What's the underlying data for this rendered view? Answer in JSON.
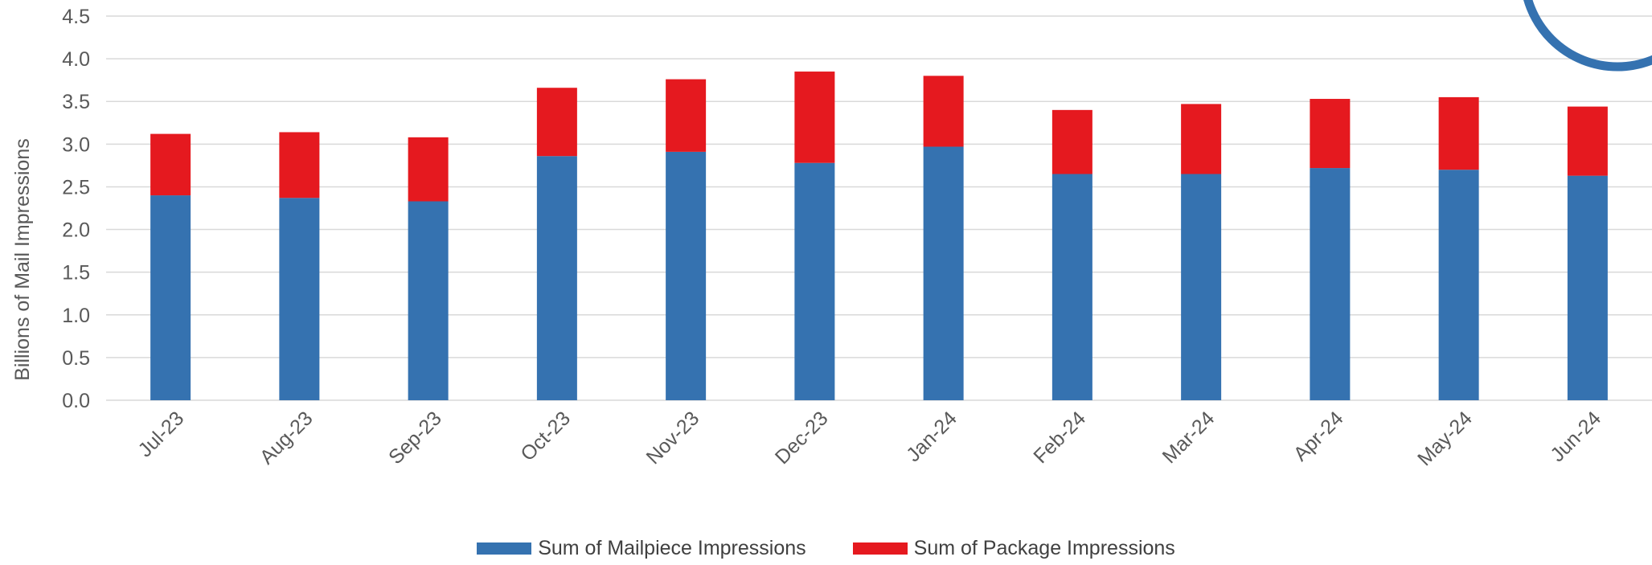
{
  "chart_data": {
    "type": "bar",
    "stacked": true,
    "categories": [
      "Jul-23",
      "Aug-23",
      "Sep-23",
      "Oct-23",
      "Nov-23",
      "Dec-23",
      "Jan-24",
      "Feb-24",
      "Mar-24",
      "Apr-24",
      "May-24",
      "Jun-24"
    ],
    "series": [
      {
        "name": "Sum of Mailpiece Impressions",
        "color": "#3572B0",
        "values": [
          2.4,
          2.37,
          2.33,
          2.86,
          2.91,
          2.78,
          2.97,
          2.65,
          2.65,
          2.72,
          2.7,
          2.63
        ]
      },
      {
        "name": "Sum of Package Impressions",
        "color": "#E5191F",
        "values": [
          0.72,
          0.77,
          0.75,
          0.8,
          0.85,
          1.07,
          0.83,
          0.75,
          0.82,
          0.81,
          0.85,
          0.81
        ]
      }
    ],
    "title": "",
    "xlabel": "",
    "ylabel": "Billions of Mail Impressions",
    "ylim": [
      0,
      4.5
    ],
    "yticks": [
      "0.0",
      "0.5",
      "1.0",
      "1.5",
      "2.0",
      "2.5",
      "3.0",
      "3.5",
      "4.0",
      "4.5"
    ],
    "grid": true,
    "legend_position": "bottom",
    "decoration_color": "#3572B0"
  }
}
